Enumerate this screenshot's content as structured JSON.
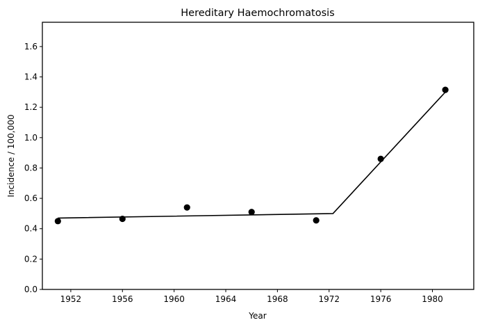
{
  "chart_data": {
    "type": "scatter",
    "title": "Hereditary Haemochromatosis",
    "xlabel": "Year",
    "ylabel": "Incidence / 100,000",
    "xlim": [
      1949.8,
      1983.2
    ],
    "ylim": [
      0.0,
      1.76
    ],
    "x_ticks": [
      1952,
      1956,
      1960,
      1964,
      1968,
      1972,
      1976,
      1980
    ],
    "y_ticks": [
      0.0,
      0.2,
      0.4,
      0.6,
      0.8,
      1.0,
      1.2,
      1.4,
      1.6
    ],
    "y_tick_labels": [
      "0.0",
      "0.2",
      "0.4",
      "0.6",
      "0.8",
      "1.0",
      "1.2",
      "1.4",
      "1.6"
    ],
    "grid": false,
    "series": [
      {
        "kind": "points",
        "x": [
          1951,
          1956,
          1961,
          1966,
          1971,
          1976,
          1981
        ],
        "y": [
          0.45,
          0.465,
          0.54,
          0.51,
          0.455,
          0.86,
          1.315
        ]
      },
      {
        "kind": "line",
        "x": [
          1951,
          1972.3,
          1981
        ],
        "y": [
          0.47,
          0.5,
          1.3
        ]
      }
    ],
    "colors": {
      "points": "#000000",
      "line": "#000000",
      "axes": "#000000"
    }
  }
}
